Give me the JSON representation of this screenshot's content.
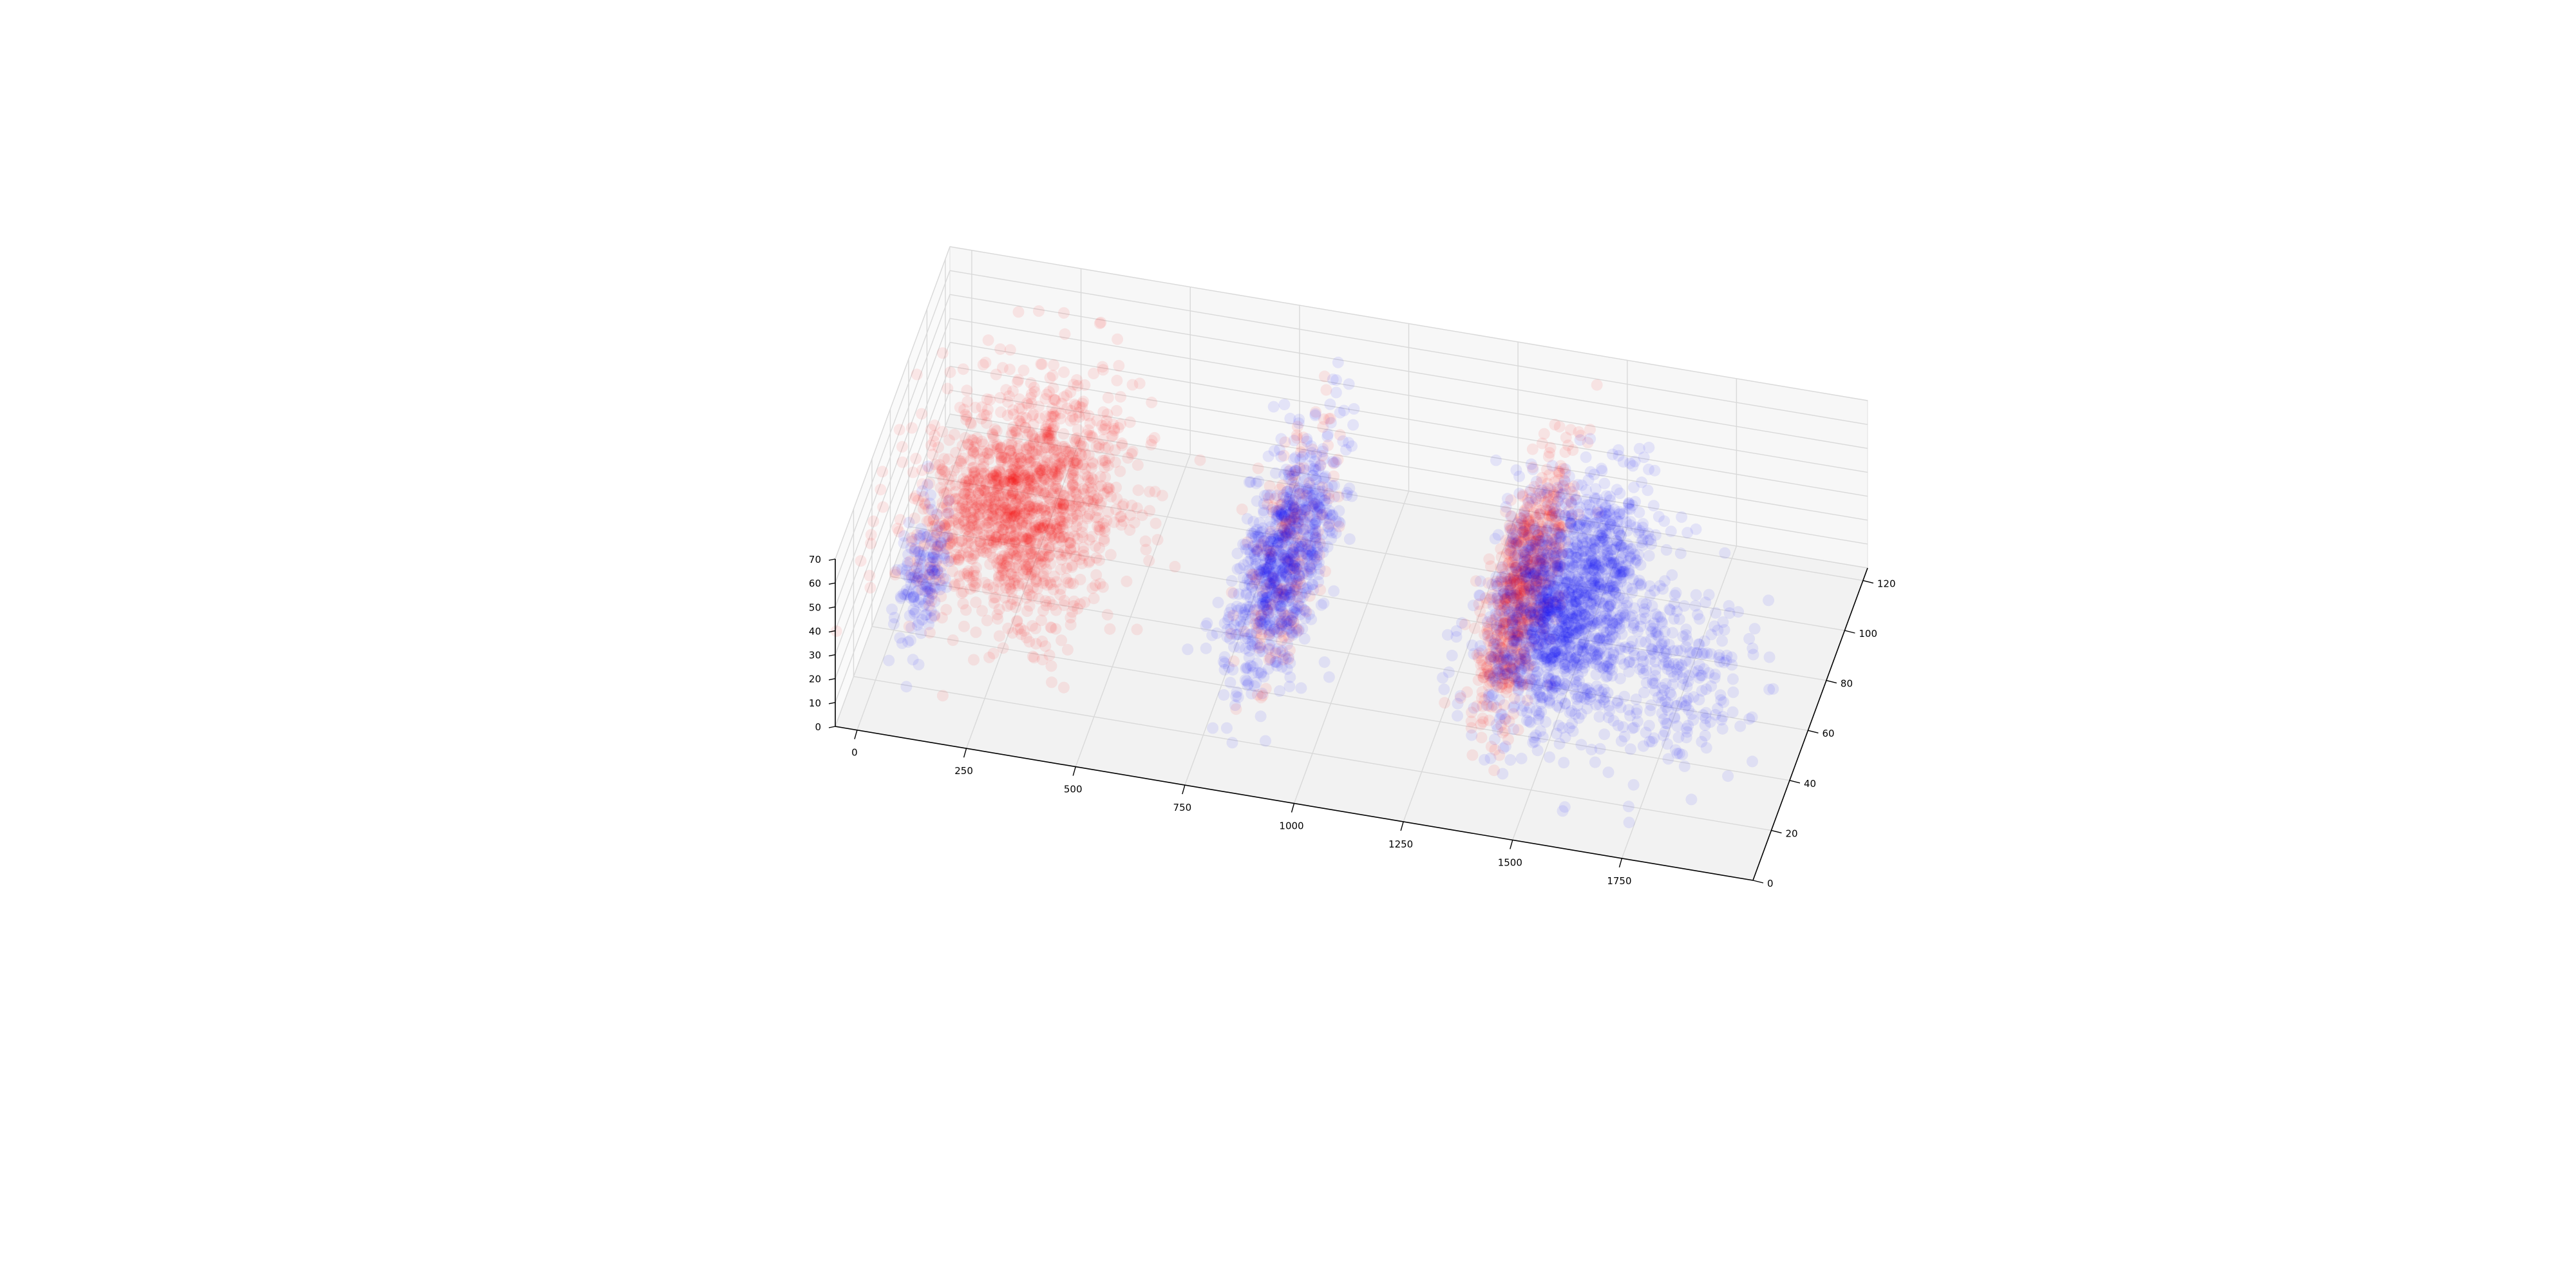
{
  "chart_data": {
    "type": "scatter3d",
    "title": "",
    "xlabel": "",
    "ylabel": "",
    "zlabel": "",
    "xlim": [
      -50,
      2050
    ],
    "ylim": [
      0,
      125
    ],
    "zlim": [
      0,
      70
    ],
    "x_ticks": [
      0,
      250,
      500,
      750,
      1000,
      1250,
      1500,
      1750
    ],
    "x_tick_labels": [
      "0",
      "250",
      "500",
      "750",
      "1000",
      "1250",
      "1500",
      "1750"
    ],
    "y_ticks": [
      0,
      20,
      40,
      60,
      80,
      100,
      120
    ],
    "y_tick_labels": [
      "0",
      "20",
      "40",
      "60",
      "80",
      "100",
      "120"
    ],
    "z_ticks": [
      0,
      10,
      20,
      30,
      40,
      50,
      60,
      70
    ],
    "z_tick_labels": [
      "0",
      "10",
      "20",
      "30",
      "40",
      "50",
      "60",
      "70"
    ],
    "grid": true,
    "marker_alpha": 0.08,
    "series": [
      {
        "color": "#ff0000",
        "clusters": [
          {
            "x_center": 250,
            "x_spread": 200,
            "y_center": 60,
            "y_spread": 35,
            "z_center": 40,
            "z_spread": 15,
            "count": 1500
          },
          {
            "x_center": 860,
            "x_spread": 60,
            "y_center": 60,
            "y_spread": 35,
            "z_center": 40,
            "z_spread": 18,
            "count": 220
          },
          {
            "x_center": 1400,
            "x_spread": 50,
            "y_center": 60,
            "y_spread": 35,
            "z_center": 40,
            "z_spread": 18,
            "count": 700
          }
        ]
      },
      {
        "color": "#0000ff",
        "clusters": [
          {
            "x_center": 100,
            "x_spread": 40,
            "y_center": 25,
            "y_spread": 15,
            "z_center": 45,
            "z_spread": 15,
            "count": 150
          },
          {
            "x_center": 850,
            "x_spread": 80,
            "y_center": 60,
            "y_spread": 35,
            "z_center": 35,
            "z_spread": 15,
            "count": 800
          },
          {
            "x_center": 1500,
            "x_spread": 150,
            "y_center": 60,
            "y_spread": 35,
            "z_center": 35,
            "z_spread": 15,
            "count": 1500
          },
          {
            "x_center": 1800,
            "x_spread": 150,
            "y_center": 35,
            "y_spread": 25,
            "z_center": 40,
            "z_spread": 15,
            "count": 250
          }
        ]
      }
    ]
  }
}
